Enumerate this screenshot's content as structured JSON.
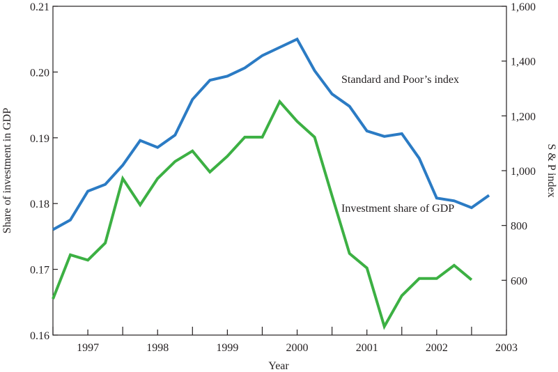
{
  "chart_data": {
    "type": "line",
    "xlabel": "Year",
    "ylabel_left": "Share of investment in GDP",
    "ylabel_right": "S & P index",
    "x_range": [
      1996.5,
      2003.0
    ],
    "x_ticks": [
      {
        "value": 1997.0,
        "label": "1997"
      },
      {
        "value": 1998.0,
        "label": "1998"
      },
      {
        "value": 1999.0,
        "label": "1999"
      },
      {
        "value": 2000.0,
        "label": "2000"
      },
      {
        "value": 2001.0,
        "label": "2001"
      },
      {
        "value": 2002.0,
        "label": "2002"
      },
      {
        "value": 2003.0,
        "label": "2003"
      }
    ],
    "x_minor_ticks": [
      1996.5,
      1997.5,
      1998.5,
      1999.5,
      2000.5,
      2001.5,
      2002.5
    ],
    "ylim_left": [
      0.16,
      0.21
    ],
    "ylim_right": [
      400,
      1600
    ],
    "yticks_left": [
      {
        "value": 0.16,
        "label": "0.16"
      },
      {
        "value": 0.17,
        "label": "0.17"
      },
      {
        "value": 0.18,
        "label": "0.18"
      },
      {
        "value": 0.19,
        "label": "0.19"
      },
      {
        "value": 0.2,
        "label": "0.20"
      },
      {
        "value": 0.21,
        "label": "0.21"
      }
    ],
    "yticks_right": [
      {
        "value": 600,
        "label": "600"
      },
      {
        "value": 800,
        "label": "800"
      },
      {
        "value": 1000,
        "label": "1,000"
      },
      {
        "value": 1200,
        "label": "1,200"
      },
      {
        "value": 1400,
        "label": "1,400"
      },
      {
        "value": 1600,
        "label": "1,600"
      }
    ],
    "series": [
      {
        "name": "Standard and Poor’s index",
        "axis": "right",
        "color": "#2b7bc4",
        "x": [
          1996.5,
          1996.75,
          1997.0,
          1997.25,
          1997.5,
          1997.75,
          1998.0,
          1998.25,
          1998.5,
          1998.75,
          1999.0,
          1999.25,
          1999.5,
          1999.75,
          2000.0,
          2000.25,
          2000.5,
          2000.75,
          2001.0,
          2001.25,
          2001.5,
          2001.75,
          2002.0,
          2002.25,
          2002.5,
          2002.75
        ],
        "values": [
          785,
          820,
          925,
          950,
          1020,
          1110,
          1085,
          1130,
          1260,
          1330,
          1345,
          1375,
          1420,
          1450,
          1480,
          1365,
          1280,
          1235,
          1145,
          1125,
          1135,
          1045,
          900,
          890,
          865,
          910
        ]
      },
      {
        "name": "Investment share of GDP",
        "axis": "left",
        "color": "#3cb043",
        "x": [
          1996.5,
          1996.75,
          1997.0,
          1997.25,
          1997.5,
          1997.75,
          1998.0,
          1998.25,
          1998.5,
          1998.75,
          1999.0,
          1999.25,
          1999.5,
          1999.75,
          2000.0,
          2000.25,
          2000.5,
          2000.75,
          2001.0,
          2001.25,
          2001.5,
          2001.75,
          2002.0,
          2002.25,
          2002.5
        ],
        "values": [
          0.1655,
          0.1722,
          0.1714,
          0.174,
          0.1838,
          0.1798,
          0.1838,
          0.1864,
          0.188,
          0.1848,
          0.1872,
          0.1901,
          0.1901,
          0.1955,
          0.1925,
          0.1901,
          0.1812,
          0.1724,
          0.1702,
          0.1613,
          0.166,
          0.1686,
          0.1686,
          0.1706,
          0.1684
        ]
      }
    ],
    "annotations": [
      {
        "text": "Standard and Poor’s index",
        "series": 0
      },
      {
        "text": "Investment share of GDP",
        "series": 1
      }
    ],
    "grid": false
  }
}
